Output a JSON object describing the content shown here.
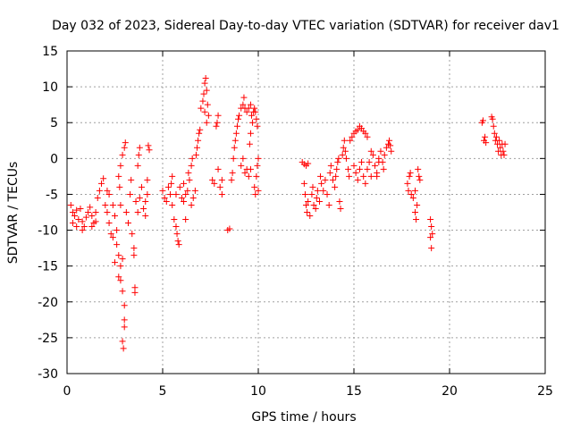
{
  "chart_data": {
    "type": "scatter",
    "title": "Day 032 of 2023, Sidereal Day-to-day VTEC variation (SDTVAR) for receiver dav1",
    "xlabel": "GPS time / hours",
    "ylabel": "SDTVAR / TECUs",
    "xlim": [
      0,
      25
    ],
    "ylim": [
      -30,
      15
    ],
    "xticks": [
      0,
      5,
      10,
      15,
      20,
      25
    ],
    "yticks": [
      -30,
      -25,
      -20,
      -15,
      -10,
      -5,
      0,
      5,
      10,
      15
    ],
    "grid": true,
    "marker": "+",
    "color": "#ff0000",
    "series": [
      {
        "name": "dav1",
        "points": [
          [
            0.2,
            -6.5
          ],
          [
            0.3,
            -7.5
          ],
          [
            0.4,
            -8.0
          ],
          [
            0.5,
            -7.2
          ],
          [
            0.6,
            -8.5
          ],
          [
            0.7,
            -7.0
          ],
          [
            0.8,
            -8.8
          ],
          [
            0.9,
            -9.5
          ],
          [
            1.0,
            -8.2
          ],
          [
            1.1,
            -7.5
          ],
          [
            1.2,
            -6.8
          ],
          [
            1.3,
            -8.0
          ],
          [
            1.4,
            -9.0
          ],
          [
            1.5,
            -7.5
          ],
          [
            1.6,
            -5.5
          ],
          [
            1.7,
            -4.5
          ],
          [
            1.8,
            -3.5
          ],
          [
            1.9,
            -2.8
          ],
          [
            1.5,
            -8.8
          ],
          [
            1.3,
            -9.5
          ],
          [
            0.3,
            -9.0
          ],
          [
            0.5,
            -9.5
          ],
          [
            0.8,
            -10.0
          ],
          [
            2.0,
            -6.5
          ],
          [
            2.1,
            -7.5
          ],
          [
            2.2,
            -9.0
          ],
          [
            2.3,
            -10.5
          ],
          [
            2.4,
            -11.0
          ],
          [
            2.2,
            -5.0
          ],
          [
            2.1,
            -4.5
          ],
          [
            2.4,
            -6.5
          ],
          [
            2.5,
            -8.0
          ],
          [
            2.5,
            -14.5
          ],
          [
            2.6,
            -10.0
          ],
          [
            2.6,
            -12.0
          ],
          [
            2.7,
            -13.5
          ],
          [
            2.7,
            -16.5
          ],
          [
            2.8,
            -15.0
          ],
          [
            2.8,
            -17.0
          ],
          [
            2.9,
            -18.5
          ],
          [
            2.9,
            -14.0
          ],
          [
            3.0,
            -20.5
          ],
          [
            3.0,
            -22.5
          ],
          [
            2.9,
            -25.5
          ],
          [
            2.95,
            -26.5
          ],
          [
            3.0,
            -23.5
          ],
          [
            2.7,
            -2.5
          ],
          [
            2.8,
            -1.0
          ],
          [
            2.9,
            0.5
          ],
          [
            3.0,
            1.5
          ],
          [
            3.05,
            2.2
          ],
          [
            2.75,
            -4.0
          ],
          [
            2.8,
            -6.5
          ],
          [
            3.1,
            -7.5
          ],
          [
            3.2,
            -9.0
          ],
          [
            3.3,
            -5.0
          ],
          [
            3.35,
            -3.0
          ],
          [
            3.4,
            -10.5
          ],
          [
            3.5,
            -12.5
          ],
          [
            3.5,
            -13.5
          ],
          [
            3.55,
            -18.0
          ],
          [
            3.55,
            -18.7
          ],
          [
            3.6,
            -6.0
          ],
          [
            3.7,
            -1.0
          ],
          [
            3.75,
            0.5
          ],
          [
            3.8,
            1.5
          ],
          [
            3.7,
            -7.5
          ],
          [
            3.8,
            -5.5
          ],
          [
            3.9,
            -4.0
          ],
          [
            4.0,
            -7.0
          ],
          [
            4.1,
            -6.0
          ],
          [
            4.2,
            -5.0
          ],
          [
            4.2,
            -3.0
          ],
          [
            4.1,
            -8.0
          ],
          [
            4.25,
            1.8
          ],
          [
            4.3,
            1.2
          ],
          [
            5.0,
            -4.5
          ],
          [
            5.1,
            -5.5
          ],
          [
            5.2,
            -6.0
          ],
          [
            5.3,
            -4.0
          ],
          [
            5.4,
            -5.0
          ],
          [
            5.5,
            -6.5
          ],
          [
            5.5,
            -2.5
          ],
          [
            5.45,
            -3.5
          ],
          [
            5.6,
            -8.5
          ],
          [
            5.7,
            -9.5
          ],
          [
            5.75,
            -10.5
          ],
          [
            5.8,
            -11.5
          ],
          [
            5.85,
            -12.0
          ],
          [
            5.7,
            -5.0
          ],
          [
            5.9,
            -4.0
          ],
          [
            6.0,
            -5.5
          ],
          [
            6.1,
            -6.0
          ],
          [
            6.2,
            -5.0
          ],
          [
            6.1,
            -3.5
          ],
          [
            6.3,
            -4.5
          ],
          [
            6.4,
            -3.0
          ],
          [
            6.35,
            -2.0
          ],
          [
            6.5,
            -1.0
          ],
          [
            6.55,
            0.0
          ],
          [
            6.6,
            -5.5
          ],
          [
            6.7,
            -4.5
          ],
          [
            6.75,
            0.5
          ],
          [
            6.8,
            1.5
          ],
          [
            6.85,
            2.5
          ],
          [
            6.9,
            3.5
          ],
          [
            6.95,
            4.0
          ],
          [
            6.2,
            -8.5
          ],
          [
            6.5,
            -6.5
          ],
          [
            7.0,
            7.0
          ],
          [
            7.1,
            8.0
          ],
          [
            7.15,
            9.0
          ],
          [
            7.2,
            10.5
          ],
          [
            7.25,
            11.2
          ],
          [
            7.3,
            9.5
          ],
          [
            7.35,
            7.5
          ],
          [
            7.4,
            6.0
          ],
          [
            7.3,
            5.0
          ],
          [
            7.2,
            6.5
          ],
          [
            7.6,
            -3.0
          ],
          [
            7.7,
            -3.5
          ],
          [
            7.8,
            4.5
          ],
          [
            7.85,
            5.0
          ],
          [
            7.9,
            6.0
          ],
          [
            7.9,
            -1.5
          ],
          [
            8.0,
            -4.0
          ],
          [
            8.1,
            -3.0
          ],
          [
            8.1,
            -5.0
          ],
          [
            8.4,
            -10.0
          ],
          [
            8.5,
            -9.8
          ],
          [
            8.6,
            -3.0
          ],
          [
            8.65,
            -2.0
          ],
          [
            8.7,
            0.0
          ],
          [
            8.75,
            1.5
          ],
          [
            8.8,
            2.5
          ],
          [
            8.85,
            3.5
          ],
          [
            8.9,
            4.5
          ],
          [
            8.95,
            5.5
          ],
          [
            9.0,
            6.0
          ],
          [
            9.1,
            7.0
          ],
          [
            9.2,
            7.5
          ],
          [
            9.25,
            8.5
          ],
          [
            9.3,
            7.0
          ],
          [
            9.4,
            6.5
          ],
          [
            9.5,
            7.0
          ],
          [
            9.6,
            7.5
          ],
          [
            9.65,
            6.0
          ],
          [
            9.7,
            5.0
          ],
          [
            9.75,
            6.5
          ],
          [
            9.8,
            7.0
          ],
          [
            9.85,
            6.5
          ],
          [
            9.9,
            5.5
          ],
          [
            9.95,
            4.5
          ],
          [
            9.1,
            -1.0
          ],
          [
            9.2,
            0.0
          ],
          [
            9.3,
            -2.0
          ],
          [
            9.4,
            -1.5
          ],
          [
            9.5,
            -2.5
          ],
          [
            9.6,
            -1.5
          ],
          [
            9.8,
            -4.0
          ],
          [
            9.85,
            -5.0
          ],
          [
            9.9,
            -2.5
          ],
          [
            9.95,
            -1.0
          ],
          [
            10.0,
            0.0
          ],
          [
            10.0,
            -4.5
          ],
          [
            9.6,
            3.5
          ],
          [
            9.55,
            2.0
          ],
          [
            12.3,
            -0.5
          ],
          [
            12.4,
            -0.8
          ],
          [
            12.5,
            -1.0
          ],
          [
            12.6,
            -0.7
          ],
          [
            12.4,
            -3.5
          ],
          [
            12.45,
            -5.0
          ],
          [
            12.5,
            -6.5
          ],
          [
            12.55,
            -7.5
          ],
          [
            12.6,
            -6.0
          ],
          [
            12.7,
            -8.0
          ],
          [
            12.8,
            -5.0
          ],
          [
            12.85,
            -4.0
          ],
          [
            12.9,
            -6.5
          ],
          [
            13.0,
            -7.0
          ],
          [
            13.05,
            -5.5
          ],
          [
            13.1,
            -4.5
          ],
          [
            13.2,
            -6.0
          ],
          [
            13.25,
            -2.5
          ],
          [
            13.3,
            -3.5
          ],
          [
            13.4,
            -4.5
          ],
          [
            13.5,
            -3.0
          ],
          [
            13.6,
            -5.0
          ],
          [
            13.7,
            -6.5
          ],
          [
            13.75,
            -2.0
          ],
          [
            13.8,
            -1.0
          ],
          [
            13.9,
            -3.0
          ],
          [
            14.0,
            -4.0
          ],
          [
            14.05,
            -2.5
          ],
          [
            14.1,
            -1.5
          ],
          [
            14.15,
            -0.5
          ],
          [
            14.2,
            0.0
          ],
          [
            14.25,
            -6.0
          ],
          [
            14.3,
            -7.0
          ],
          [
            14.4,
            0.5
          ],
          [
            14.45,
            1.5
          ],
          [
            14.5,
            2.5
          ],
          [
            14.55,
            1.0
          ],
          [
            14.6,
            0.0
          ],
          [
            14.7,
            -1.5
          ],
          [
            14.75,
            -2.5
          ],
          [
            14.8,
            2.5
          ],
          [
            14.9,
            3.0
          ],
          [
            15.0,
            3.5
          ],
          [
            15.1,
            3.8
          ],
          [
            15.2,
            4.0
          ],
          [
            15.3,
            4.5
          ],
          [
            15.4,
            4.2
          ],
          [
            15.5,
            3.8
          ],
          [
            15.6,
            3.5
          ],
          [
            15.7,
            3.0
          ],
          [
            15.0,
            -1.0
          ],
          [
            15.1,
            -2.0
          ],
          [
            15.2,
            -3.0
          ],
          [
            15.3,
            -1.5
          ],
          [
            15.4,
            -0.5
          ],
          [
            15.5,
            -2.5
          ],
          [
            15.6,
            -3.5
          ],
          [
            15.7,
            -1.5
          ],
          [
            15.8,
            -0.5
          ],
          [
            15.9,
            -2.5
          ],
          [
            16.0,
            0.5
          ],
          [
            16.1,
            -1.0
          ],
          [
            16.2,
            -2.0
          ],
          [
            16.3,
            0.0
          ],
          [
            16.4,
            1.0
          ],
          [
            16.5,
            -0.5
          ],
          [
            16.55,
            -1.5
          ],
          [
            16.6,
            0.5
          ],
          [
            16.7,
            1.5
          ],
          [
            16.8,
            2.0
          ],
          [
            16.85,
            2.5
          ],
          [
            16.9,
            1.8
          ],
          [
            16.95,
            1.0
          ],
          [
            16.2,
            -2.5
          ],
          [
            16.3,
            -0.5
          ],
          [
            15.9,
            1.0
          ],
          [
            17.8,
            -3.5
          ],
          [
            17.85,
            -4.5
          ],
          [
            17.9,
            -2.5
          ],
          [
            17.95,
            -2.0
          ],
          [
            18.0,
            -5.0
          ],
          [
            18.1,
            -5.5
          ],
          [
            18.2,
            -4.5
          ],
          [
            18.2,
            -7.5
          ],
          [
            18.25,
            -8.5
          ],
          [
            18.3,
            -6.5
          ],
          [
            18.35,
            -1.5
          ],
          [
            18.4,
            -2.5
          ],
          [
            18.45,
            -3.0
          ],
          [
            19.0,
            -8.5
          ],
          [
            19.05,
            -9.5
          ],
          [
            19.0,
            -11.0
          ],
          [
            19.05,
            -12.5
          ],
          [
            19.1,
            -10.5
          ],
          [
            21.7,
            5.0
          ],
          [
            21.75,
            5.3
          ],
          [
            21.8,
            2.5
          ],
          [
            21.85,
            3.0
          ],
          [
            21.9,
            2.2
          ],
          [
            22.2,
            5.8
          ],
          [
            22.25,
            5.5
          ],
          [
            22.3,
            4.5
          ],
          [
            22.35,
            3.5
          ],
          [
            22.4,
            2.5
          ],
          [
            22.45,
            3.0
          ],
          [
            22.5,
            2.0
          ],
          [
            22.55,
            1.0
          ],
          [
            22.6,
            2.5
          ],
          [
            22.65,
            1.5
          ],
          [
            22.7,
            0.5
          ],
          [
            22.75,
            2.0
          ],
          [
            22.8,
            1.0
          ],
          [
            22.85,
            0.5
          ],
          [
            22.9,
            2.0
          ]
        ]
      }
    ]
  }
}
